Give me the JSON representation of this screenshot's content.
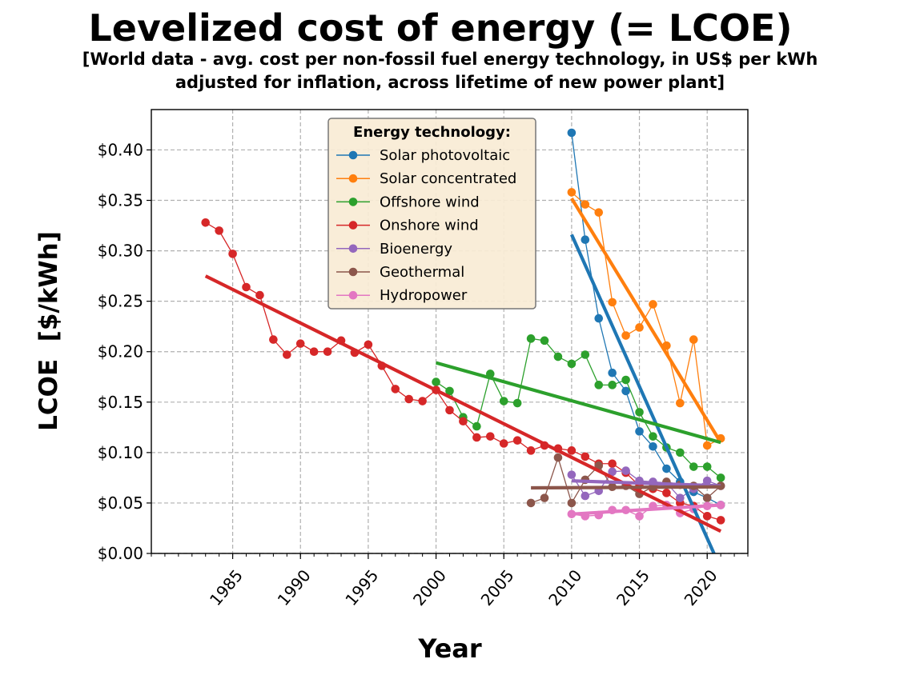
{
  "chart_data": {
    "type": "line",
    "title": "Levelized cost of energy (= LCOE)",
    "subtitle_line1": "[World data - avg. cost per non-fossil fuel energy technology, in US$ per kWh",
    "subtitle_line2": "adjusted for inflation, across lifetime of new power plant]",
    "xlabel": "Year",
    "ylabel": "LCOE  [$/kWh]",
    "xlim": [
      1979,
      2023
    ],
    "ylim": [
      0,
      0.44
    ],
    "x_ticks": [
      1985,
      1990,
      1995,
      2000,
      2005,
      2010,
      2015,
      2020
    ],
    "x_tick_labels": [
      "1985",
      "1990",
      "1995",
      "2000",
      "2005",
      "2010",
      "2015",
      "2020"
    ],
    "y_ticks": [
      0,
      0.05,
      0.1,
      0.15,
      0.2,
      0.25,
      0.3,
      0.35,
      0.4
    ],
    "y_tick_labels": [
      "$0.00",
      "$0.05",
      "$0.10",
      "$0.15",
      "$0.20",
      "$0.25",
      "$0.30",
      "$0.35",
      "$0.40"
    ],
    "grid": true,
    "legend_title": "Energy technology:",
    "legend_position": "top-center",
    "series": [
      {
        "name": "Solar photovoltaic",
        "color": "#1f77b4",
        "x": [
          2010,
          2011,
          2012,
          2013,
          2014,
          2015,
          2016,
          2017,
          2018,
          2019,
          2020,
          2021
        ],
        "y": [
          0.417,
          0.311,
          0.233,
          0.179,
          0.161,
          0.121,
          0.106,
          0.084,
          0.071,
          0.061,
          0.055,
          0.048
        ],
        "trend": [
          [
            2010,
            0.316
          ],
          [
            2020.5,
            0.0
          ]
        ]
      },
      {
        "name": "Solar concentrated",
        "color": "#ff7f0e",
        "x": [
          2010,
          2011,
          2012,
          2013,
          2014,
          2015,
          2016,
          2017,
          2018,
          2019,
          2020,
          2021
        ],
        "y": [
          0.358,
          0.346,
          0.338,
          0.249,
          0.216,
          0.224,
          0.247,
          0.206,
          0.149,
          0.212,
          0.107,
          0.114
        ],
        "trend": [
          [
            2010,
            0.352
          ],
          [
            2021,
            0.11
          ]
        ]
      },
      {
        "name": "Offshore wind",
        "color": "#2ca02c",
        "x": [
          2000,
          2001,
          2002,
          2003,
          2004,
          2005,
          2006,
          2007,
          2008,
          2009,
          2010,
          2011,
          2012,
          2013,
          2014,
          2015,
          2016,
          2017,
          2018,
          2019,
          2020,
          2021
        ],
        "y": [
          0.17,
          0.161,
          0.135,
          0.126,
          0.178,
          0.151,
          0.149,
          0.213,
          0.211,
          0.195,
          0.188,
          0.197,
          0.167,
          0.167,
          0.172,
          0.14,
          0.116,
          0.105,
          0.1,
          0.086,
          0.086,
          0.075
        ],
        "trend": [
          [
            2000,
            0.189
          ],
          [
            2021,
            0.11
          ]
        ]
      },
      {
        "name": "Onshore wind",
        "color": "#d62728",
        "x": [
          1983,
          1984,
          1985,
          1986,
          1987,
          1988,
          1989,
          1990,
          1991,
          1992,
          1993,
          1994,
          1995,
          1996,
          1997,
          1998,
          1999,
          2000,
          2001,
          2002,
          2003,
          2004,
          2005,
          2006,
          2007,
          2008,
          2009,
          2010,
          2011,
          2012,
          2013,
          2014,
          2015,
          2016,
          2017,
          2018,
          2019,
          2020,
          2021
        ],
        "y": [
          0.328,
          0.32,
          0.297,
          0.264,
          0.256,
          0.212,
          0.197,
          0.208,
          0.2,
          0.2,
          0.211,
          0.199,
          0.207,
          0.186,
          0.163,
          0.153,
          0.151,
          0.162,
          0.142,
          0.131,
          0.115,
          0.116,
          0.109,
          0.112,
          0.102,
          0.107,
          0.104,
          0.102,
          0.096,
          0.089,
          0.089,
          0.08,
          0.067,
          0.064,
          0.06,
          0.05,
          0.047,
          0.037,
          0.033
        ],
        "trend": [
          [
            1983,
            0.275
          ],
          [
            2021,
            0.022
          ]
        ]
      },
      {
        "name": "Bioenergy",
        "color": "#9467bd",
        "x": [
          2010,
          2011,
          2012,
          2013,
          2014,
          2015,
          2016,
          2017,
          2018,
          2019,
          2020,
          2021
        ],
        "y": [
          0.078,
          0.057,
          0.062,
          0.081,
          0.082,
          0.072,
          0.071,
          0.07,
          0.055,
          0.064,
          0.072,
          0.067
        ],
        "trend": [
          [
            2010,
            0.072
          ],
          [
            2021,
            0.067
          ]
        ]
      },
      {
        "name": "Geothermal",
        "color": "#8c564b",
        "x": [
          2007,
          2008,
          2009,
          2010,
          2011,
          2012,
          2013,
          2014,
          2015,
          2016,
          2017,
          2018,
          2019,
          2020,
          2021
        ],
        "y": [
          0.05,
          0.055,
          0.095,
          0.05,
          0.073,
          0.087,
          0.066,
          0.067,
          0.059,
          0.066,
          0.071,
          0.068,
          0.067,
          0.055,
          0.067
        ],
        "trend": [
          [
            2007,
            0.065
          ],
          [
            2021,
            0.066
          ]
        ]
      },
      {
        "name": "Hydropower",
        "color": "#e377c2",
        "x": [
          2010,
          2011,
          2012,
          2013,
          2014,
          2015,
          2016,
          2017,
          2018,
          2019,
          2020,
          2021
        ],
        "y": [
          0.039,
          0.037,
          0.038,
          0.043,
          0.043,
          0.037,
          0.047,
          0.048,
          0.04,
          0.044,
          0.047,
          0.048
        ],
        "trend": [
          [
            2010,
            0.039
          ],
          [
            2021,
            0.048
          ]
        ]
      }
    ]
  }
}
